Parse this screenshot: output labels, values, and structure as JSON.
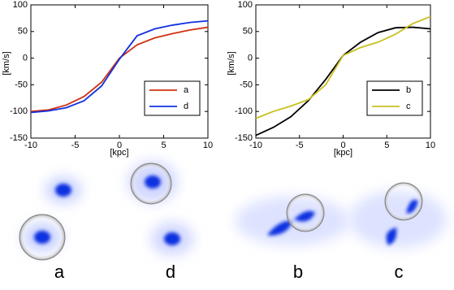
{
  "chart_data": [
    {
      "type": "line",
      "x_label": "[kpc]",
      "y_label": "[km/s]",
      "x": [
        -10,
        -8,
        -6,
        -4,
        -2,
        0,
        2,
        4,
        6,
        8,
        10
      ],
      "series": [
        {
          "name": "a",
          "color": "#d03010",
          "values": [
            -100,
            -97,
            -88,
            -72,
            -45,
            0,
            25,
            38,
            46,
            53,
            58
          ]
        },
        {
          "name": "d",
          "color": "#1030e0",
          "values": [
            -102,
            -99,
            -93,
            -80,
            -52,
            -2,
            42,
            55,
            62,
            67,
            70
          ]
        }
      ],
      "xlim": [
        -10,
        10
      ],
      "xticks": [
        -10,
        -5,
        0,
        5,
        10
      ],
      "ylim": [
        -150,
        100
      ],
      "yticks": [
        -150,
        -100,
        -50,
        0,
        50,
        100
      ],
      "legend": "lower right"
    },
    {
      "type": "line",
      "x_label": "[kpc]",
      "y_label": "[km/s]",
      "x": [
        -10,
        -8,
        -6,
        -4,
        -2,
        0,
        2,
        4,
        6,
        8,
        10
      ],
      "series": [
        {
          "name": "b",
          "color": "#000000",
          "values": [
            -145,
            -130,
            -110,
            -80,
            -40,
            5,
            30,
            48,
            57,
            58,
            55
          ]
        },
        {
          "name": "c",
          "color": "#c8c020",
          "values": [
            -113,
            -100,
            -90,
            -78,
            -50,
            5,
            20,
            30,
            45,
            65,
            78
          ]
        }
      ],
      "xlim": [
        -10,
        10
      ],
      "xticks": [
        -10,
        -5,
        0,
        5,
        10
      ],
      "ylim": [
        -150,
        100
      ],
      "yticks": [
        -150,
        -100,
        -50,
        0,
        50,
        100
      ],
      "legend": "lower right"
    }
  ],
  "image_labels": [
    "a",
    "d",
    "b",
    "c"
  ]
}
